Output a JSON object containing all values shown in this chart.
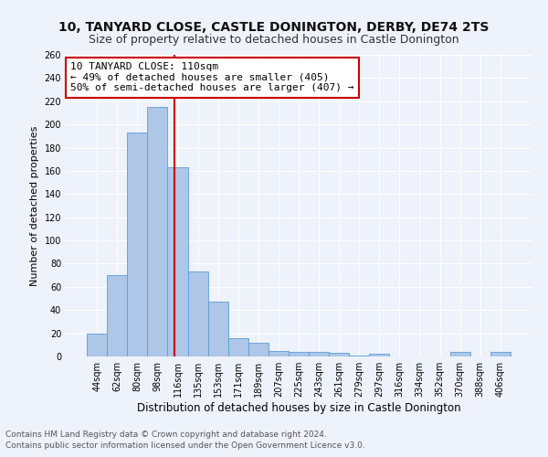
{
  "title1": "10, TANYARD CLOSE, CASTLE DONINGTON, DERBY, DE74 2TS",
  "title2": "Size of property relative to detached houses in Castle Donington",
  "xlabel": "Distribution of detached houses by size in Castle Donington",
  "ylabel": "Number of detached properties",
  "footer1": "Contains HM Land Registry data © Crown copyright and database right 2024.",
  "footer2": "Contains public sector information licensed under the Open Government Licence v3.0.",
  "bar_labels": [
    "44sqm",
    "62sqm",
    "80sqm",
    "98sqm",
    "116sqm",
    "135sqm",
    "153sqm",
    "171sqm",
    "189sqm",
    "207sqm",
    "225sqm",
    "243sqm",
    "261sqm",
    "279sqm",
    "297sqm",
    "316sqm",
    "334sqm",
    "352sqm",
    "370sqm",
    "388sqm",
    "406sqm"
  ],
  "bar_values": [
    20,
    70,
    193,
    215,
    163,
    73,
    47,
    16,
    12,
    5,
    4,
    4,
    3,
    1,
    2,
    0,
    0,
    0,
    4,
    0,
    4
  ],
  "bar_color": "#aec6e8",
  "bar_edge_color": "#5a9fd4",
  "annotation_text": "10 TANYARD CLOSE: 110sqm\n← 49% of detached houses are smaller (405)\n50% of semi-detached houses are larger (407) →",
  "annotation_box_color": "#ffffff",
  "annotation_box_edge": "#cc0000",
  "vline_color": "#cc0000",
  "ylim": [
    0,
    260
  ],
  "yticks": [
    0,
    20,
    40,
    60,
    80,
    100,
    120,
    140,
    160,
    180,
    200,
    220,
    240,
    260
  ],
  "bg_color": "#eef2fb",
  "grid_color": "#ffffff",
  "title1_fontsize": 10,
  "title2_fontsize": 9,
  "xlabel_fontsize": 8.5,
  "ylabel_fontsize": 8,
  "tick_fontsize": 7,
  "footer_fontsize": 6.5,
  "ann_fontsize": 8
}
